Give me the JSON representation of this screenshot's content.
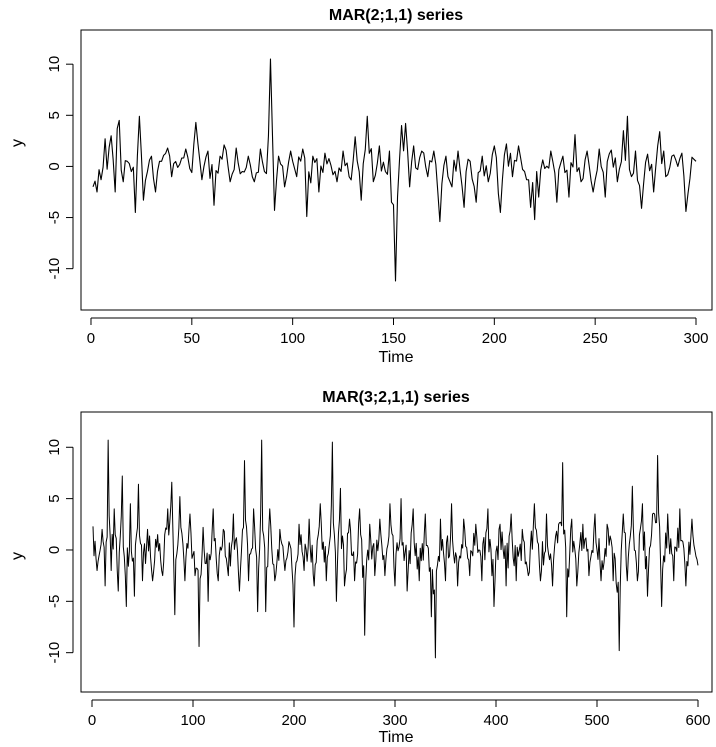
{
  "chart_data": [
    {
      "type": "line",
      "title": "MAR(2;1,1) series",
      "xlabel": "Time",
      "ylabel": "y",
      "xlim": [
        1,
        300
      ],
      "ylim": [
        -11.5,
        10.8
      ],
      "xticks": [
        0,
        50,
        100,
        150,
        200,
        250,
        300
      ],
      "yticks": [
        -10,
        -5,
        0,
        5,
        10
      ],
      "grid": false,
      "legend": "none",
      "line_color": "#000000",
      "anchors": [
        [
          1,
          -2.0
        ],
        [
          3,
          -2.5
        ],
        [
          5,
          -1.3
        ],
        [
          7,
          2.7
        ],
        [
          10,
          3.0
        ],
        [
          12,
          -2.5
        ],
        [
          13,
          3.7
        ],
        [
          14,
          4.5
        ],
        [
          16,
          -1.5
        ],
        [
          18,
          0.5
        ],
        [
          20,
          -0.5
        ],
        [
          22,
          -4.5
        ],
        [
          23,
          1.0
        ],
        [
          24,
          4.9
        ],
        [
          26,
          -3.3
        ],
        [
          28,
          -0.5
        ],
        [
          30,
          1.0
        ],
        [
          32,
          -2.5
        ],
        [
          35,
          0.5
        ],
        [
          38,
          1.8
        ],
        [
          40,
          -1.0
        ],
        [
          44,
          0.2
        ],
        [
          47,
          1.7
        ],
        [
          50,
          -0.6
        ],
        [
          52,
          4.3
        ],
        [
          55,
          -1.3
        ],
        [
          58,
          1.5
        ],
        [
          61,
          -3.8
        ],
        [
          64,
          1.0
        ],
        [
          66,
          2.1
        ],
        [
          69,
          -1.5
        ],
        [
          72,
          1.8
        ],
        [
          75,
          -0.5
        ],
        [
          78,
          1.0
        ],
        [
          81,
          -1.5
        ],
        [
          84,
          1.7
        ],
        [
          86,
          -0.5
        ],
        [
          88,
          3.0
        ],
        [
          89,
          10.5
        ],
        [
          90,
          3.0
        ],
        [
          91,
          -4.3
        ],
        [
          93,
          1.0
        ],
        [
          96,
          -2.0
        ],
        [
          99,
          1.5
        ],
        [
          102,
          -1.0
        ],
        [
          105,
          1.7
        ],
        [
          107,
          -4.9
        ],
        [
          110,
          1.0
        ],
        [
          113,
          -2.5
        ],
        [
          116,
          1.3
        ],
        [
          119,
          0.1
        ],
        [
          122,
          -1.5
        ],
        [
          125,
          1.5
        ],
        [
          128,
          -1.0
        ],
        [
          131,
          2.9
        ],
        [
          134,
          -3.3
        ],
        [
          137,
          4.9
        ],
        [
          140,
          -1.5
        ],
        [
          143,
          2.0
        ],
        [
          146,
          -0.5
        ],
        [
          148,
          1.5
        ],
        [
          149,
          -3.5
        ],
        [
          151,
          -11.2
        ],
        [
          152,
          -3.0
        ],
        [
          154,
          4.0
        ],
        [
          156,
          4.2
        ],
        [
          158,
          -2.0
        ],
        [
          160,
          2.0
        ],
        [
          162,
          -0.3
        ],
        [
          164,
          1.5
        ],
        [
          167,
          -1.0
        ],
        [
          170,
          1.5
        ],
        [
          173,
          -5.4
        ],
        [
          176,
          1.0
        ],
        [
          179,
          -2.0
        ],
        [
          182,
          1.5
        ],
        [
          185,
          -4.0
        ],
        [
          188,
          0.5
        ],
        [
          191,
          -3.5
        ],
        [
          194,
          1.0
        ],
        [
          197,
          -1.5
        ],
        [
          200,
          2.0
        ],
        [
          203,
          -4.5
        ],
        [
          206,
          2.2
        ],
        [
          209,
          -1.0
        ],
        [
          212,
          2.0
        ],
        [
          215,
          -0.5
        ],
        [
          218,
          -4.0
        ],
        [
          220,
          -5.2
        ],
        [
          222,
          -3.0
        ],
        [
          225,
          -0.2
        ],
        [
          228,
          1.5
        ],
        [
          231,
          -3.5
        ],
        [
          234,
          1.0
        ],
        [
          237,
          -3.0
        ],
        [
          240,
          3.1
        ],
        [
          243,
          -1.5
        ],
        [
          246,
          1.5
        ],
        [
          249,
          -2.5
        ],
        [
          252,
          1.7
        ],
        [
          255,
          -3.0
        ],
        [
          258,
          1.6
        ],
        [
          261,
          -1.5
        ],
        [
          264,
          3.5
        ],
        [
          266,
          4.9
        ],
        [
          268,
          -1.0
        ],
        [
          270,
          1.5
        ],
        [
          273,
          -4.1
        ],
        [
          276,
          1.2
        ],
        [
          279,
          -2.5
        ],
        [
          282,
          3.4
        ],
        [
          285,
          -1.0
        ],
        [
          288,
          1.0
        ],
        [
          291,
          0.0
        ],
        [
          293,
          1.3
        ],
        [
          295,
          -4.4
        ],
        [
          298,
          0.9
        ],
        [
          300,
          0.5
        ]
      ]
    },
    {
      "type": "line",
      "title": "MAR(3;2,1,1) series",
      "xlabel": "Time",
      "ylabel": "y",
      "xlim": [
        1,
        600
      ],
      "ylim": [
        -11.2,
        11.0
      ],
      "xticks": [
        0,
        100,
        200,
        300,
        400,
        500,
        600
      ],
      "yticks": [
        -10,
        -5,
        0,
        5,
        10
      ],
      "grid": false,
      "legend": "none",
      "line_color": "#000000",
      "anchors": [
        [
          1,
          2.3
        ],
        [
          5,
          -2.0
        ],
        [
          10,
          2.0
        ],
        [
          13,
          -3.5
        ],
        [
          16,
          10.7
        ],
        [
          19,
          -2.0
        ],
        [
          22,
          4.0
        ],
        [
          26,
          -4.0
        ],
        [
          30,
          7.2
        ],
        [
          34,
          -5.5
        ],
        [
          38,
          4.5
        ],
        [
          42,
          -4.5
        ],
        [
          46,
          6.4
        ],
        [
          50,
          -3.0
        ],
        [
          55,
          2.0
        ],
        [
          60,
          -3.0
        ],
        [
          65,
          1.5
        ],
        [
          70,
          -2.5
        ],
        [
          75,
          4.0
        ],
        [
          79,
          6.6
        ],
        [
          82,
          -6.3
        ],
        [
          87,
          5.2
        ],
        [
          92,
          -3.0
        ],
        [
          97,
          3.5
        ],
        [
          102,
          -2.5
        ],
        [
          106,
          -9.4
        ],
        [
          110,
          2.2
        ],
        [
          115,
          -5.0
        ],
        [
          120,
          4.0
        ],
        [
          125,
          -3.0
        ],
        [
          130,
          2.0
        ],
        [
          135,
          -2.5
        ],
        [
          140,
          3.5
        ],
        [
          146,
          -4.0
        ],
        [
          151,
          8.7
        ],
        [
          155,
          -3.0
        ],
        [
          160,
          4.0
        ],
        [
          164,
          -6.0
        ],
        [
          168,
          10.7
        ],
        [
          172,
          -6.0
        ],
        [
          176,
          4.0
        ],
        [
          181,
          -3.0
        ],
        [
          186,
          2.0
        ],
        [
          191,
          -2.0
        ],
        [
          196,
          0.5
        ],
        [
          200,
          -7.5
        ],
        [
          205,
          2.5
        ],
        [
          210,
          -2.0
        ],
        [
          215,
          3.0
        ],
        [
          220,
          -3.5
        ],
        [
          226,
          4.5
        ],
        [
          232,
          -3.0
        ],
        [
          238,
          10.5
        ],
        [
          242,
          -5.0
        ],
        [
          246,
          6.0
        ],
        [
          250,
          -3.5
        ],
        [
          255,
          3.0
        ],
        [
          260,
          -3.0
        ],
        [
          265,
          4.0
        ],
        [
          270,
          -8.3
        ],
        [
          275,
          2.5
        ],
        [
          280,
          -2.5
        ],
        [
          285,
          3.0
        ],
        [
          290,
          -2.5
        ],
        [
          295,
          4.5
        ],
        [
          300,
          -3.5
        ],
        [
          306,
          5.0
        ],
        [
          312,
          -4.0
        ],
        [
          318,
          4.0
        ],
        [
          324,
          -3.0
        ],
        [
          330,
          3.5
        ],
        [
          336,
          -6.5
        ],
        [
          340,
          -10.5
        ],
        [
          345,
          3.0
        ],
        [
          350,
          -3.0
        ],
        [
          356,
          4.5
        ],
        [
          362,
          -3.5
        ],
        [
          368,
          3.0
        ],
        [
          374,
          -2.5
        ],
        [
          380,
          2.5
        ],
        [
          386,
          -3.0
        ],
        [
          392,
          4.0
        ],
        [
          398,
          -5.5
        ],
        [
          404,
          2.5
        ],
        [
          410,
          -3.5
        ],
        [
          415,
          3.5
        ],
        [
          420,
          -3.0
        ],
        [
          426,
          2.0
        ],
        [
          432,
          -2.5
        ],
        [
          438,
          4.5
        ],
        [
          444,
          -3.0
        ],
        [
          450,
          3.5
        ],
        [
          456,
          -3.5
        ],
        [
          462,
          2.5
        ],
        [
          466,
          8.5
        ],
        [
          470,
          -6.5
        ],
        [
          475,
          3.0
        ],
        [
          480,
          -3.5
        ],
        [
          486,
          2.5
        ],
        [
          492,
          -2.5
        ],
        [
          498,
          3.5
        ],
        [
          504,
          -3.0
        ],
        [
          510,
          2.5
        ],
        [
          516,
          -3.0
        ],
        [
          522,
          -9.8
        ],
        [
          526,
          3.5
        ],
        [
          530,
          -3.0
        ],
        [
          535,
          6.2
        ],
        [
          540,
          -3.0
        ],
        [
          545,
          4.5
        ],
        [
          550,
          -4.5
        ],
        [
          555,
          3.5
        ],
        [
          560,
          9.2
        ],
        [
          564,
          -5.5
        ],
        [
          570,
          3.5
        ],
        [
          576,
          -3.0
        ],
        [
          582,
          4.0
        ],
        [
          588,
          -3.5
        ],
        [
          594,
          3.0
        ],
        [
          600,
          -1.5
        ]
      ]
    }
  ]
}
